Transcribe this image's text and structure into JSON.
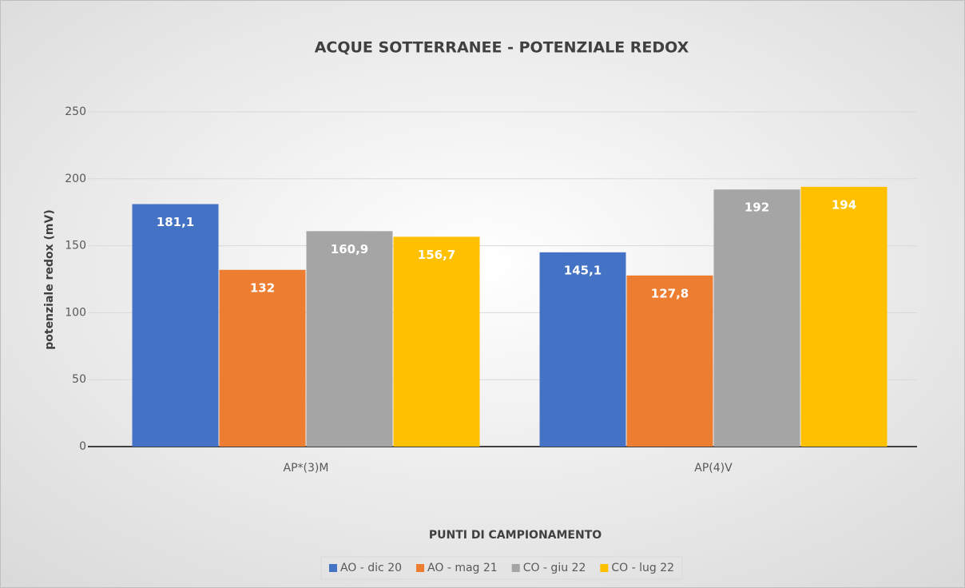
{
  "chart_data": {
    "type": "bar",
    "title": "ACQUE SOTTERRANEE - POTENZIALE REDOX",
    "x_label": "PUNTI DI CAMPIONAMENTO",
    "y_label": "potenziale redox (mV)",
    "categories": [
      "AP*(3)M",
      "AP(4)V"
    ],
    "series": [
      {
        "name": "AO - dic 20",
        "color": "#4472c4",
        "values": [
          181.1,
          145.1
        ],
        "value_labels": [
          "181,1",
          "145,1"
        ]
      },
      {
        "name": "AO - mag 21",
        "color": "#ed7d31",
        "values": [
          132,
          127.8
        ],
        "value_labels": [
          "132",
          "127,8"
        ]
      },
      {
        "name": "CO - giu 22",
        "color": "#a5a5a5",
        "values": [
          160.9,
          192
        ],
        "value_labels": [
          "160,9",
          "192"
        ]
      },
      {
        "name": "CO - lug 22",
        "color": "#ffc000",
        "values": [
          156.7,
          194
        ],
        "value_labels": [
          "156,7",
          "194"
        ]
      }
    ],
    "ylim": [
      0,
      250
    ],
    "yticks": [
      0,
      50,
      100,
      150,
      200,
      250
    ],
    "grid": true,
    "legend": "bottom"
  }
}
